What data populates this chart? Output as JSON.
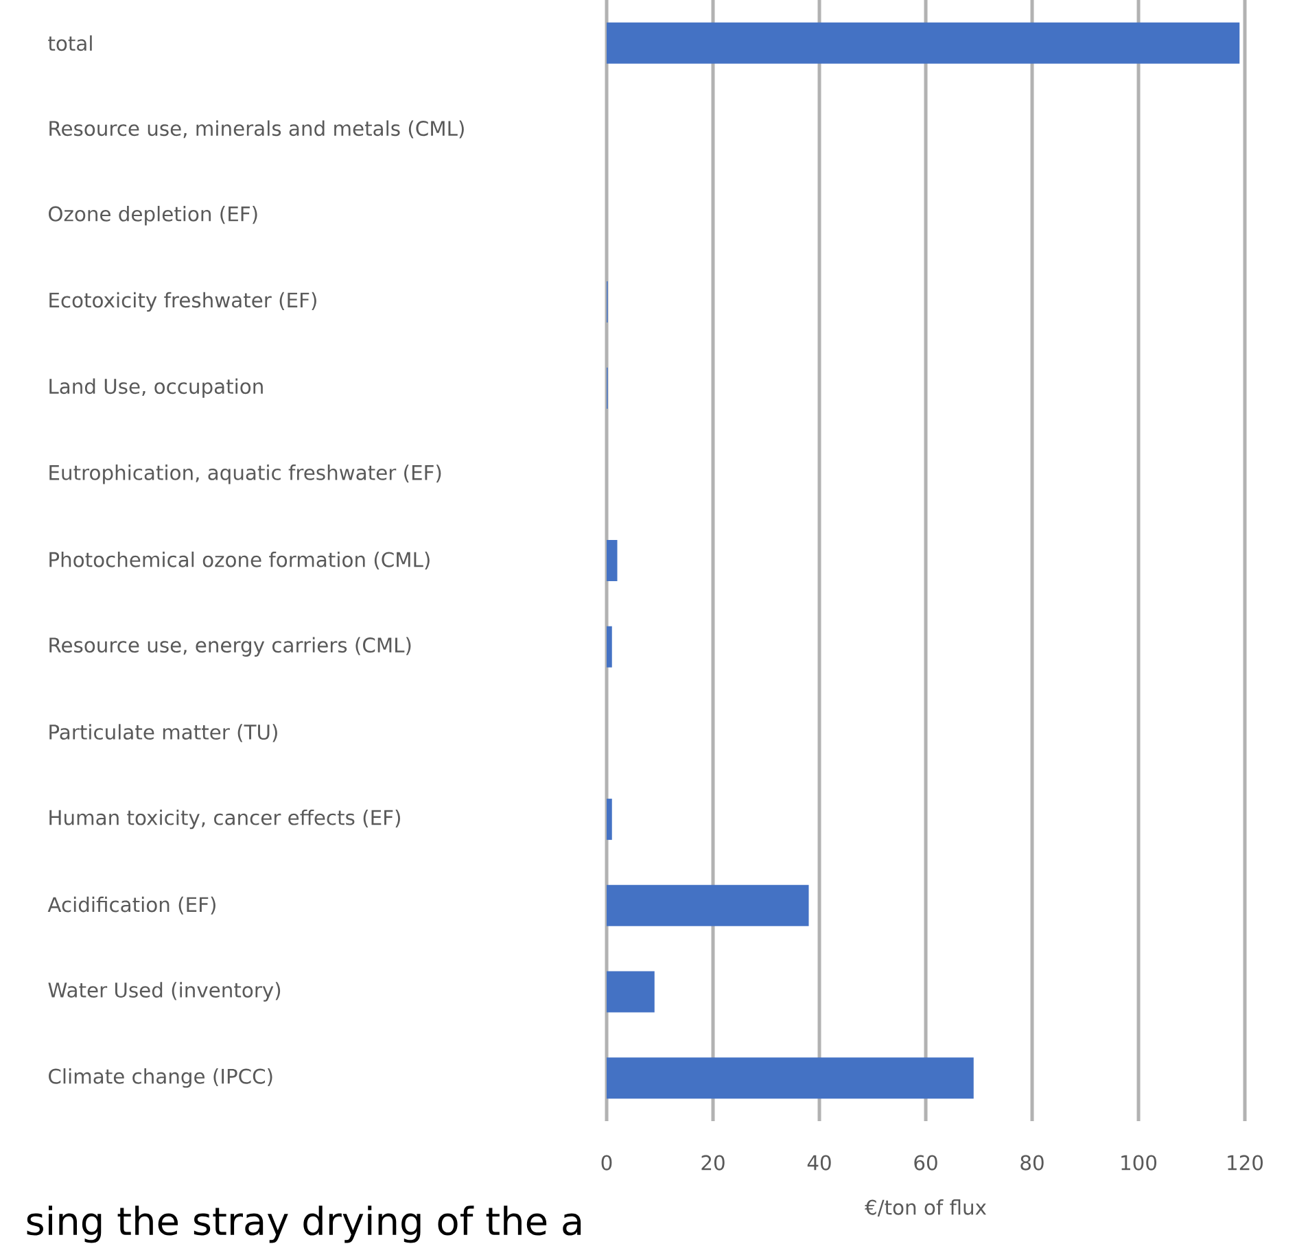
{
  "chart_data": {
    "type": "bar",
    "orientation": "horizontal",
    "categories": [
      "total",
      "Resource use, minerals and metals (CML)",
      "Ozone depletion (EF)",
      "Ecotoxicity freshwater (EF)",
      "Land Use, occupation",
      "Eutrophication, aquatic freshwater (EF)",
      "Photochemical ozone formation (CML)",
      "Resource use, energy carriers (CML)",
      "Particulate matter (TU)",
      "Human toxicity, cancer effects (EF)",
      "Acidification (EF)",
      "Water Used (inventory)",
      "Climate change (IPCC)"
    ],
    "values": [
      119,
      0,
      0,
      0.2,
      0.2,
      0,
      2,
      1,
      0,
      1,
      38,
      9,
      69
    ],
    "color": "#4472c4",
    "xlim": [
      0,
      120
    ],
    "xticks": [
      0,
      20,
      40,
      60,
      80,
      100,
      120
    ],
    "xlabel": "€/ton of flux",
    "grid": "x",
    "annotations": [
      "sing the stray drying of the a"
    ]
  }
}
